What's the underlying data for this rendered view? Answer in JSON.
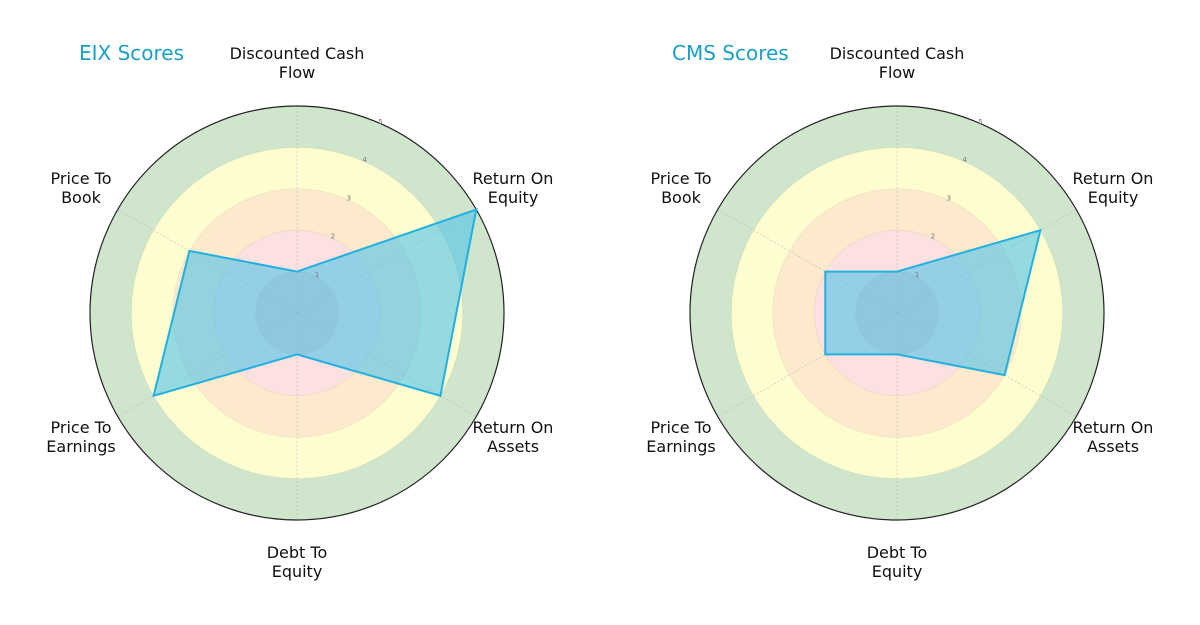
{
  "chart_data": [
    {
      "type": "radar",
      "title": "EIX Scores",
      "axes": [
        "Discounted Cash Flow",
        "Return On Equity",
        "Return On Assets",
        "Debt To Equity",
        "Price To Earnings",
        "Price To Book"
      ],
      "axis_labels_display": [
        "Discounted Cash\nFlow",
        "Return On\nEquity",
        "Return On\nAssets",
        "Debt To\nEquity",
        "Price To\nEarnings",
        "Price To\nBook"
      ],
      "values": [
        1,
        5,
        4,
        1,
        4,
        3
      ],
      "rlim": [
        0,
        5
      ],
      "rticks": [
        "1",
        "2",
        "3",
        "4",
        "5"
      ],
      "grid": true
    },
    {
      "type": "radar",
      "title": "CMS Scores",
      "axes": [
        "Discounted Cash Flow",
        "Return On Equity",
        "Return On Assets",
        "Debt To Equity",
        "Price To Earnings",
        "Price To Book"
      ],
      "axis_labels_display": [
        "Discounted Cash\nFlow",
        "Return On\nEquity",
        "Return On\nAssets",
        "Debt To\nEquity",
        "Price To\nEarnings",
        "Price To\nBook"
      ],
      "values": [
        1,
        4,
        3,
        1,
        2,
        2
      ],
      "rlim": [
        0,
        5
      ],
      "rticks": [
        "1",
        "2",
        "3",
        "4",
        "5"
      ],
      "grid": true
    }
  ],
  "style": {
    "title_color": "#1a9fc6",
    "ring_colors": [
      "#f4cccc",
      "#fde0e0",
      "#fde9cc",
      "#fefdd0",
      "#cfe5cc"
    ],
    "polygon_fill": "#4fc3ea",
    "polygon_stroke": "#22b0e0",
    "outline_color": "#222222"
  }
}
